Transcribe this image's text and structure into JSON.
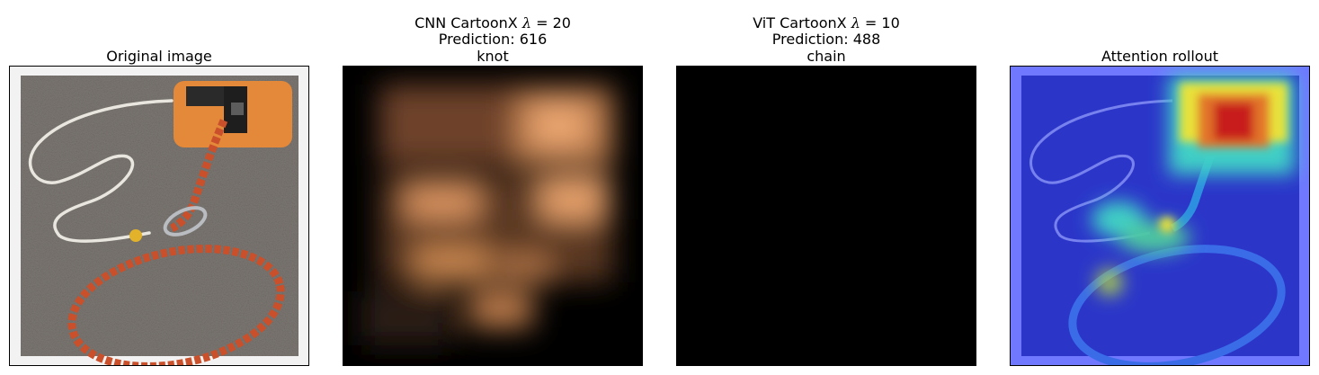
{
  "panels": [
    {
      "title_lines": [
        "Original image"
      ],
      "image": {
        "depicts": "orange chain with orange plastic block and white rope on asphalt",
        "colors": {
          "asphalt": "#7d7873",
          "chain": "#c9502a",
          "block": "#e4883a",
          "rope": "#e9e6df",
          "border_bg": "#f2f2f2"
        }
      }
    },
    {
      "title_lines": [
        {
          "prefix": "CNN CartoonX ",
          "symbol": "λ",
          "suffix": " = 20"
        },
        "Prediction: 616",
        "knot"
      ],
      "image": {
        "depicts": "blurred copper-toned explanation mask",
        "colors": {
          "background": "#000000",
          "highlight": "#e9a46f",
          "mid": "#7a4e30"
        }
      }
    },
    {
      "title_lines": [
        {
          "prefix": "ViT CartoonX ",
          "symbol": "λ",
          "suffix": " = 10"
        },
        "Prediction: 488",
        "chain"
      ],
      "image": {
        "depicts": "entirely black explanation mask",
        "colors": {
          "background": "#000000"
        }
      }
    },
    {
      "title_lines": [
        "Attention rollout"
      ],
      "image": {
        "depicts": "jet colormap attention heatmap overlaid on the original image",
        "colors": {
          "low": "#2b36c9",
          "mid": "#3fd0c6",
          "high": "#e8e23a",
          "max": "#c81e1e",
          "edge": "#6f78ff"
        }
      }
    }
  ]
}
